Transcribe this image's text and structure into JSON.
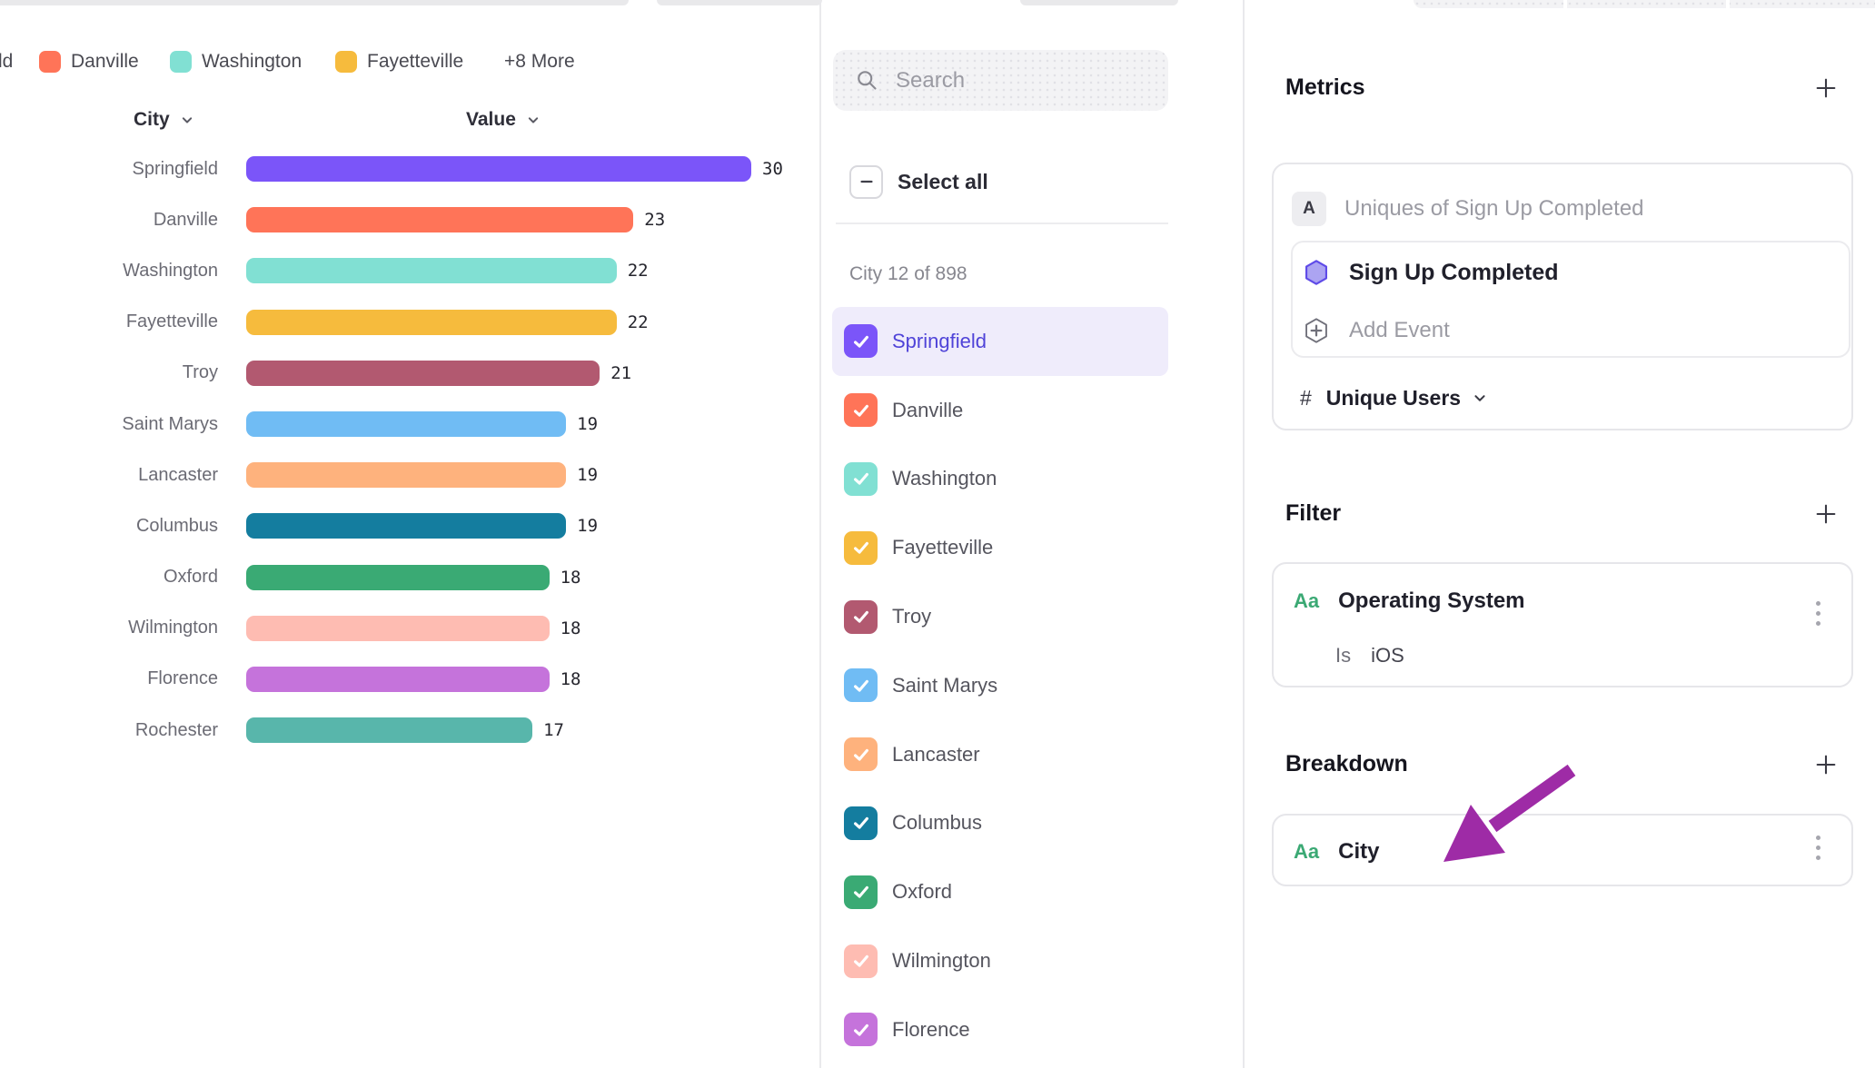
{
  "legend": {
    "partial_first_label": "ld",
    "items": [
      {
        "label": "Danville",
        "color": "#FF7458"
      },
      {
        "label": "Washington",
        "color": "#81E0D3"
      },
      {
        "label": "Fayetteville",
        "color": "#F6BB3D"
      }
    ],
    "more_label": "+8 More"
  },
  "chart_data": {
    "type": "bar",
    "orientation": "horizontal",
    "title": "",
    "xlabel": "Value",
    "ylabel": "City",
    "columns": {
      "city": "City",
      "value": "Value"
    },
    "categories": [
      "Springfield",
      "Danville",
      "Washington",
      "Fayetteville",
      "Troy",
      "Saint Marys",
      "Lancaster",
      "Columbus",
      "Oxford",
      "Wilmington",
      "Florence",
      "Rochester"
    ],
    "values": [
      30,
      23,
      22,
      22,
      21,
      19,
      19,
      19,
      18,
      18,
      18,
      17
    ],
    "colors": [
      "#7B55F9",
      "#FF7458",
      "#81E0D3",
      "#F6BB3D",
      "#B25970",
      "#70BCF4",
      "#FEB27D",
      "#147D9F",
      "#3AAA74",
      "#FEBCB2",
      "#C573DB",
      "#58B6AB"
    ],
    "xlim": [
      0,
      30
    ],
    "grid": false,
    "legend_position": "top"
  },
  "city_selector": {
    "search_placeholder": "Search",
    "select_all_label": "Select all",
    "group_label": "City 12 of 898",
    "items": [
      {
        "label": "Springfield",
        "color": "#7B55F9",
        "checked": true,
        "highlighted": true
      },
      {
        "label": "Danville",
        "color": "#FF7458",
        "checked": true
      },
      {
        "label": "Washington",
        "color": "#81E0D3",
        "checked": true
      },
      {
        "label": "Fayetteville",
        "color": "#F6BB3D",
        "checked": true
      },
      {
        "label": "Troy",
        "color": "#B25970",
        "checked": true
      },
      {
        "label": "Saint Marys",
        "color": "#70BCF4",
        "checked": true
      },
      {
        "label": "Lancaster",
        "color": "#FEB27D",
        "checked": true
      },
      {
        "label": "Columbus",
        "color": "#147D9F",
        "checked": true
      },
      {
        "label": "Oxford",
        "color": "#3AAA74",
        "checked": true
      },
      {
        "label": "Wilmington",
        "color": "#FEBCB2",
        "checked": true
      },
      {
        "label": "Florence",
        "color": "#C573DB",
        "checked": true
      }
    ]
  },
  "inspector": {
    "metrics": {
      "title": "Metrics",
      "row_letter": "A",
      "row_label": "Uniques of Sign Up Completed",
      "event_label": "Sign Up Completed",
      "add_event_label": "Add Event",
      "hash_symbol": "#",
      "aggregation_label": "Unique Users"
    },
    "filter": {
      "title": "Filter",
      "type_icon": "Aa",
      "property_label": "Operating System",
      "operator_label": "Is",
      "value_label": "iOS"
    },
    "breakdown": {
      "title": "Breakdown",
      "type_icon": "Aa",
      "property_label": "City"
    },
    "accent_colors": {
      "aa_green": "#3BA974",
      "arrow_purple": "#9E2BA6",
      "highlight_purple": "#4f43d8"
    }
  }
}
